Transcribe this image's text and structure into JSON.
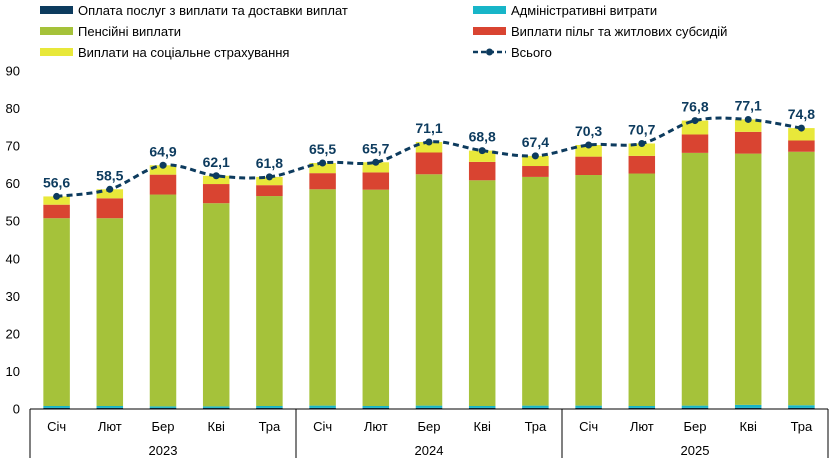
{
  "chart_data": {
    "type": "bar",
    "stacked": true,
    "categories": [
      "Січ",
      "Лют",
      "Бер",
      "Кві",
      "Тра",
      "Січ",
      "Лют",
      "Бер",
      "Кві",
      "Тра",
      "Січ",
      "Лют",
      "Бер",
      "Кві",
      "Тра"
    ],
    "groups": [
      {
        "label": "2023",
        "count": 5
      },
      {
        "label": "2024",
        "count": 5
      },
      {
        "label": "2025",
        "count": 5
      }
    ],
    "ylim": [
      0,
      90
    ],
    "yticks": [
      0,
      10,
      20,
      30,
      40,
      50,
      60,
      70,
      80,
      90
    ],
    "grid": false,
    "legend_position": "top",
    "series": [
      {
        "name": "Оплата послуг з виплати та доставки виплат",
        "color": "#0d3b5e",
        "values": [
          0.3,
          0.3,
          0.3,
          0.3,
          0.3,
          0.3,
          0.3,
          0.3,
          0.3,
          0.3,
          0.3,
          0.3,
          0.3,
          0.3,
          0.3
        ]
      },
      {
        "name": "Адміністративні витрати",
        "color": "#17b5c8",
        "values": [
          0.5,
          0.5,
          0.4,
          0.4,
          0.5,
          0.6,
          0.5,
          0.6,
          0.5,
          0.6,
          0.6,
          0.5,
          0.6,
          0.8,
          0.7
        ]
      },
      {
        "name": "Пенсійні виплати",
        "color": "#a5c23a",
        "values": [
          50.0,
          50.0,
          56.4,
          54.1,
          55.9,
          57.6,
          57.6,
          61.6,
          60.1,
          60.9,
          61.4,
          61.9,
          67.3,
          66.9,
          67.5
        ]
      },
      {
        "name": "Виплати пільг та житлових субсидій",
        "color": "#d94431",
        "values": [
          3.6,
          5.3,
          5.3,
          5.1,
          2.9,
          4.3,
          4.6,
          5.8,
          4.9,
          2.9,
          4.9,
          4.7,
          4.9,
          5.8,
          3.0
        ]
      },
      {
        "name": "Виплати на соціальне страхування",
        "color": "#e8e83a",
        "values": [
          2.2,
          2.4,
          2.5,
          2.2,
          2.2,
          2.7,
          2.7,
          2.8,
          3.0,
          2.7,
          3.1,
          3.3,
          3.7,
          3.3,
          3.3
        ]
      }
    ],
    "total": {
      "name": "Всього",
      "color": "#0d3b5e",
      "values": [
        56.6,
        58.5,
        64.9,
        62.1,
        61.8,
        65.5,
        65.7,
        71.1,
        68.8,
        67.4,
        70.3,
        70.7,
        76.8,
        77.1,
        74.8
      ],
      "labels": [
        "56,6",
        "58,5",
        "64,9",
        "62,1",
        "61,8",
        "65,5",
        "65,7",
        "71,1",
        "68,8",
        "67,4",
        "70,3",
        "70,7",
        "76,8",
        "77,1",
        "74,8"
      ]
    }
  }
}
